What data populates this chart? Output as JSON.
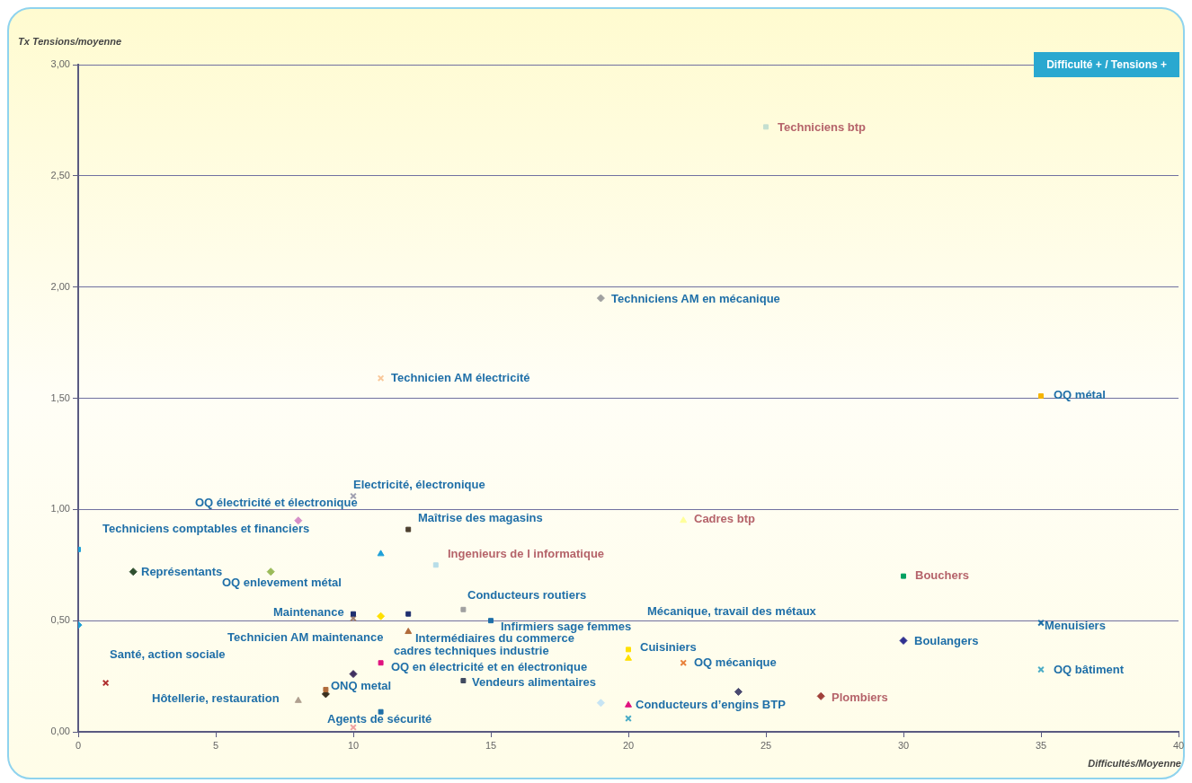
{
  "chart_data": {
    "type": "scatter",
    "xlabel": "Difficultés/Moyenne",
    "ylabel": "Tx Tensions/moyenne",
    "xlim": [
      0,
      40
    ],
    "xticks": [
      0,
      5,
      10,
      15,
      20,
      25,
      30,
      35,
      40
    ],
    "ylim": [
      0,
      3
    ],
    "yticks": [
      {
        "value": 0,
        "label": "0,00"
      },
      {
        "value": 0.5,
        "label": "0,50"
      },
      {
        "value": 1,
        "label": "1,00"
      },
      {
        "value": 1.5,
        "label": "1,50"
      },
      {
        "value": 2,
        "label": "2,00"
      },
      {
        "value": 2.5,
        "label": "2,50"
      },
      {
        "value": 3,
        "label": "3,00"
      }
    ],
    "grid": "y",
    "legend": false,
    "series": [
      {
        "color": "#c4dfd0",
        "marker": "square",
        "x": [
          25
        ],
        "values": [
          2.72
        ]
      },
      {
        "color": "#a0a0a0",
        "marker": "diamond",
        "x": [
          19
        ],
        "values": [
          1.95
        ]
      },
      {
        "color": "#f9c89a",
        "marker": "cross",
        "x": [
          11
        ],
        "values": [
          1.59
        ]
      },
      {
        "color": "#f5b400",
        "marker": "square",
        "x": [
          35
        ],
        "values": [
          1.51
        ]
      },
      {
        "color": "#a0a0b0",
        "marker": "cross",
        "x": [
          10
        ],
        "values": [
          1.06
        ]
      },
      {
        "color": "#d68fc8",
        "marker": "diamond",
        "x": [
          8
        ],
        "values": [
          0.95
        ]
      },
      {
        "color": "#4d4030",
        "marker": "square",
        "x": [
          12
        ],
        "values": [
          0.91
        ]
      },
      {
        "color": "#1ea0d8",
        "marker": "triangle",
        "x": [
          11
        ],
        "values": [
          0.8
        ]
      },
      {
        "color": "#2f4f2f",
        "marker": "diamond",
        "x": [
          2
        ],
        "values": [
          0.72
        ]
      },
      {
        "color": "#9bbb59",
        "marker": "diamond",
        "x": [
          7
        ],
        "values": [
          0.72
        ]
      },
      {
        "color": "#b7dde8",
        "marker": "square",
        "x": [
          13
        ],
        "values": [
          0.75
        ]
      },
      {
        "color": "#ffff99",
        "marker": "triangle",
        "x": [
          22
        ],
        "values": [
          0.95
        ]
      },
      {
        "color": "#00a060",
        "marker": "square",
        "x": [
          30
        ],
        "values": [
          0.7
        ]
      },
      {
        "color": "#1ea0d8",
        "marker": "square",
        "x": [
          0
        ],
        "values": [
          0.82
        ]
      },
      {
        "color": "#1ea0d8",
        "marker": "diamond",
        "x": [
          0
        ],
        "values": [
          0.48
        ]
      },
      {
        "color": "#1f2f6f",
        "marker": "square",
        "x": [
          10
        ],
        "values": [
          0.53
        ]
      },
      {
        "color": "#a08070",
        "marker": "cross",
        "x": [
          10
        ],
        "values": [
          0.51
        ]
      },
      {
        "color": "#ffe000",
        "marker": "diamond",
        "x": [
          11
        ],
        "values": [
          0.52
        ]
      },
      {
        "color": "#1f2f6f",
        "marker": "square",
        "x": [
          12
        ],
        "values": [
          0.53
        ]
      },
      {
        "color": "#a0a0a0",
        "marker": "square",
        "x": [
          14
        ],
        "values": [
          0.55
        ]
      },
      {
        "color": "#1f6fa8",
        "marker": "square",
        "x": [
          15
        ],
        "values": [
          0.5
        ]
      },
      {
        "color": "#b06a3a",
        "marker": "triangle",
        "x": [
          12
        ],
        "values": [
          0.45
        ]
      },
      {
        "color": "#e0117f",
        "marker": "square",
        "x": [
          11
        ],
        "values": [
          0.31
        ]
      },
      {
        "color": "#403060",
        "marker": "diamond",
        "x": [
          10
        ],
        "values": [
          0.26
        ]
      },
      {
        "color": "#b06a3a",
        "marker": "square",
        "x": [
          9
        ],
        "values": [
          0.19
        ]
      },
      {
        "color": "#3a3020",
        "marker": "diamond",
        "x": [
          9
        ],
        "values": [
          0.17
        ]
      },
      {
        "color": "#b0a090",
        "marker": "triangle",
        "x": [
          8
        ],
        "values": [
          0.14
        ]
      },
      {
        "color": "#1f6fa8",
        "marker": "square",
        "x": [
          11
        ],
        "values": [
          0.09
        ]
      },
      {
        "color": "#f0a0a0",
        "marker": "cross",
        "x": [
          10
        ],
        "values": [
          0.02
        ]
      },
      {
        "color": "#b03030",
        "marker": "cross",
        "x": [
          1
        ],
        "values": [
          0.22
        ]
      },
      {
        "color": "#404a60",
        "marker": "square",
        "x": [
          14
        ],
        "values": [
          0.23
        ]
      },
      {
        "color": "#ffe000",
        "marker": "square",
        "x": [
          20
        ],
        "values": [
          0.37
        ]
      },
      {
        "color": "#ffe000",
        "marker": "triangle",
        "x": [
          20
        ],
        "values": [
          0.33
        ]
      },
      {
        "color": "#c6e4f4",
        "marker": "diamond",
        "x": [
          19
        ],
        "values": [
          0.13
        ]
      },
      {
        "color": "#e0117f",
        "marker": "triangle",
        "x": [
          20
        ],
        "values": [
          0.12
        ]
      },
      {
        "color": "#4bacc6",
        "marker": "cross",
        "x": [
          20
        ],
        "values": [
          0.06
        ]
      },
      {
        "color": "#e8803a",
        "marker": "cross",
        "x": [
          22
        ],
        "values": [
          0.31
        ]
      },
      {
        "color": "#4a4a70",
        "marker": "diamond",
        "x": [
          24
        ],
        "values": [
          0.18
        ]
      },
      {
        "color": "#a0403a",
        "marker": "diamond",
        "x": [
          27
        ],
        "values": [
          0.16
        ]
      },
      {
        "color": "#2f3090",
        "marker": "diamond",
        "x": [
          30
        ],
        "values": [
          0.41
        ]
      },
      {
        "color": "#1f6fa8",
        "marker": "cross",
        "x": [
          35
        ],
        "values": [
          0.49
        ]
      },
      {
        "color": "#4bacc6",
        "marker": "cross",
        "x": [
          35
        ],
        "values": [
          0.28
        ]
      }
    ],
    "annotations": [
      "Difficulté + / Tensions +",
      "Techniciens btp",
      "Techniciens AM en mécanique",
      "Technicien AM électricité",
      "OQ  métal",
      "Electricité, électronique",
      "OQ électricité et électronique",
      "Techniciens comptables et financiers",
      "Maîtrise des magasins",
      "Ingenieurs de l informatique",
      "Cadres btp",
      "Représentants",
      "OQ enlevement métal",
      "Bouchers",
      "Conducteurs routiers",
      "Mécanique, travail des métaux",
      "Maintenance",
      "Infirmiers sage femmes",
      "Menuisiers",
      "Technicien AM maintenance",
      "Intermédiaires du commerce",
      "cadres techniques industrie",
      "Cuisiniers",
      "Boulangers",
      "Santé, action sociale",
      "OQ  en électricité et en électronique",
      "OQ mécanique",
      "OQ  bâtiment",
      "Vendeurs alimentaires",
      "ONQ  metal",
      "Hôtellerie, restauration",
      "Plombiers",
      "Conducteurs d’engins BTP",
      "Agents de sécurité"
    ]
  }
}
